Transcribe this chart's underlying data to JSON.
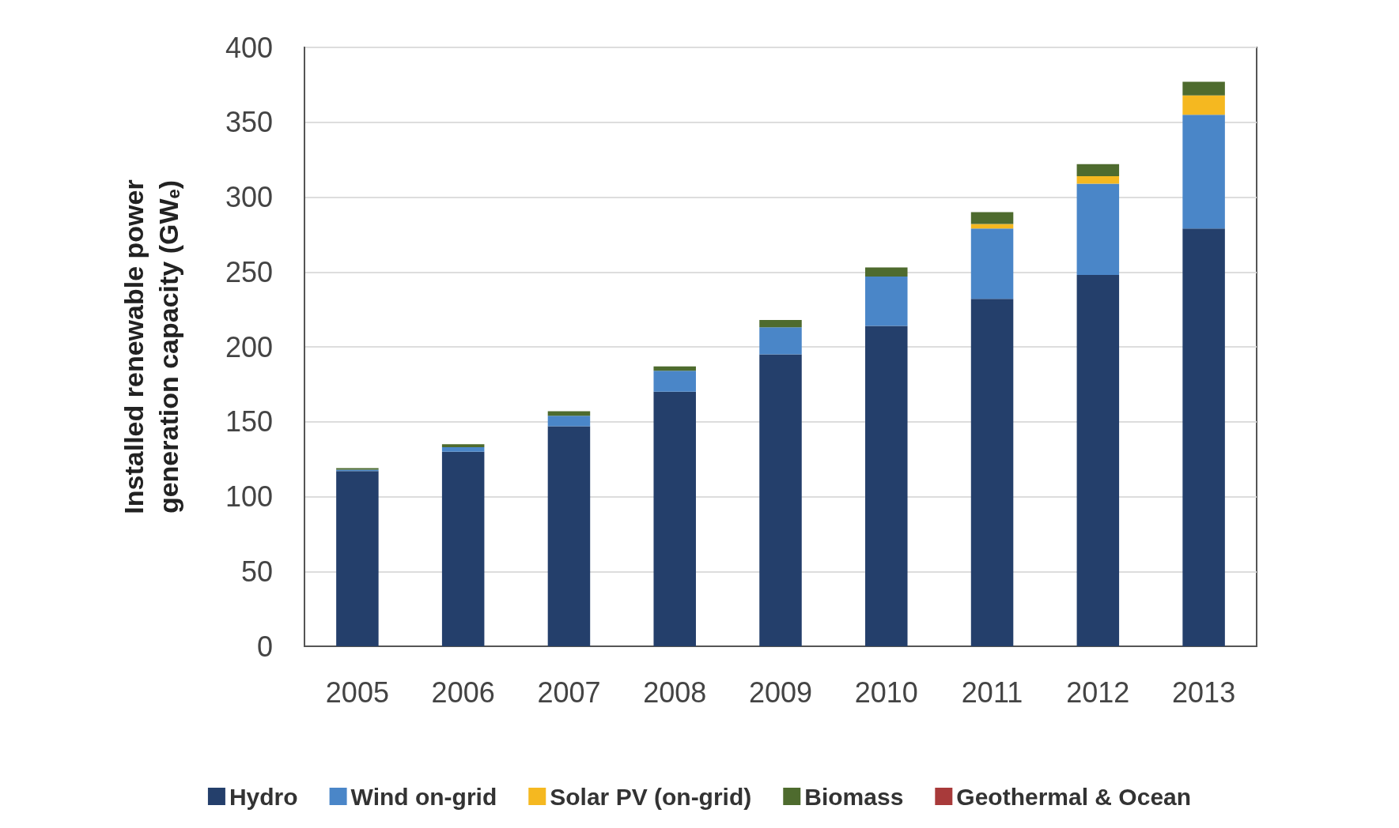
{
  "chart_data": {
    "type": "bar",
    "stacked": true,
    "ylabel": "Installed renewable power generation capacity (GW$_{e}$)",
    "categories": [
      "2005",
      "2006",
      "2007",
      "2008",
      "2009",
      "2010",
      "2011",
      "2012",
      "2013"
    ],
    "series": [
      {
        "name": "Hydro",
        "color": "#243f6b",
        "values": [
          117,
          130,
          147,
          170,
          195,
          214,
          232,
          248,
          279
        ]
      },
      {
        "name": "Wind on-grid",
        "color": "#4a86c8",
        "values": [
          1,
          3,
          7,
          14,
          18,
          33,
          47,
          61,
          76
        ]
      },
      {
        "name": "Solar PV (on-grid)",
        "color": "#f5b820",
        "values": [
          0,
          0,
          0,
          0,
          0,
          0,
          3,
          5,
          13
        ]
      },
      {
        "name": "Biomass",
        "color": "#4e6b2e",
        "values": [
          1,
          2,
          3,
          3,
          5,
          6,
          8,
          8,
          9
        ]
      },
      {
        "name": "Geothermal & Ocean",
        "color": "#a83a3a",
        "values": [
          0,
          0,
          0,
          0,
          0,
          0,
          0,
          0,
          0
        ]
      }
    ],
    "ylim": [
      0,
      400
    ],
    "yticks": [
      0,
      50,
      100,
      150,
      200,
      250,
      300,
      350,
      400
    ],
    "grid": "y",
    "legend": "bottom"
  }
}
